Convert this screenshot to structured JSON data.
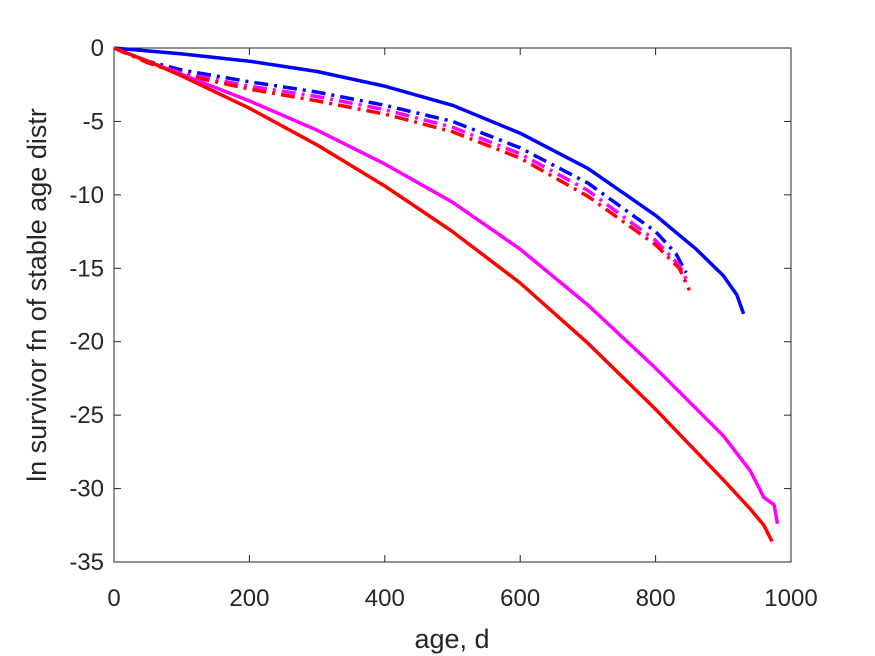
{
  "chart_data": {
    "type": "line",
    "title": "",
    "xlabel": "age, d",
    "ylabel": "ln survivor fn of stable age distr",
    "xlim": [
      0,
      1000
    ],
    "ylim": [
      -35,
      0
    ],
    "xticks": [
      0,
      200,
      400,
      600,
      800,
      1000
    ],
    "yticks": [
      0,
      -5,
      -10,
      -15,
      -20,
      -25,
      -30,
      -35
    ],
    "grid": false,
    "legend": "none",
    "series": [
      {
        "color": "#0000ff",
        "style": "solid",
        "x": [
          0,
          100,
          200,
          300,
          400,
          500,
          600,
          700,
          800,
          860,
          900,
          920,
          930
        ],
        "y": [
          0,
          -0.4,
          -0.9,
          -1.6,
          -2.6,
          -3.9,
          -5.8,
          -8.2,
          -11.4,
          -13.7,
          -15.5,
          -16.8,
          -18.1
        ]
      },
      {
        "color": "#0000ff",
        "style": "dashdot",
        "x": [
          0,
          50,
          100,
          200,
          300,
          400,
          500,
          600,
          700,
          800,
          830,
          845
        ],
        "y": [
          0,
          -0.9,
          -1.5,
          -2.3,
          -3.0,
          -3.9,
          -5.0,
          -6.8,
          -9.2,
          -12.5,
          -14.0,
          -15.3
        ]
      },
      {
        "color": "#ff00ff",
        "style": "dashdot",
        "x": [
          0,
          50,
          100,
          200,
          300,
          400,
          500,
          600,
          700,
          800,
          835,
          848
        ],
        "y": [
          0,
          -1.0,
          -1.7,
          -2.6,
          -3.3,
          -4.2,
          -5.4,
          -7.2,
          -9.7,
          -13.1,
          -14.8,
          -16.0
        ]
      },
      {
        "color": "#ff0000",
        "style": "dashdot",
        "x": [
          0,
          50,
          100,
          200,
          300,
          400,
          500,
          600,
          700,
          800,
          835,
          850
        ],
        "y": [
          0,
          -1.0,
          -1.8,
          -2.8,
          -3.6,
          -4.5,
          -5.7,
          -7.5,
          -10.1,
          -13.4,
          -15.0,
          -16.5
        ]
      },
      {
        "color": "#ff00ff",
        "style": "solid",
        "x": [
          0,
          50,
          100,
          200,
          300,
          400,
          500,
          600,
          700,
          800,
          900,
          940,
          960,
          975,
          980
        ],
        "y": [
          0,
          -0.9,
          -1.8,
          -3.6,
          -5.6,
          -7.9,
          -10.5,
          -13.7,
          -17.5,
          -21.8,
          -26.4,
          -28.8,
          -30.6,
          -31.1,
          -32.4
        ]
      },
      {
        "color": "#ff0000",
        "style": "solid",
        "x": [
          0,
          50,
          100,
          200,
          300,
          400,
          500,
          600,
          700,
          800,
          900,
          940,
          960,
          972
        ],
        "y": [
          0,
          -0.9,
          -1.9,
          -4.1,
          -6.6,
          -9.4,
          -12.5,
          -16.0,
          -20.1,
          -24.6,
          -29.4,
          -31.4,
          -32.5,
          -33.6
        ]
      }
    ]
  }
}
